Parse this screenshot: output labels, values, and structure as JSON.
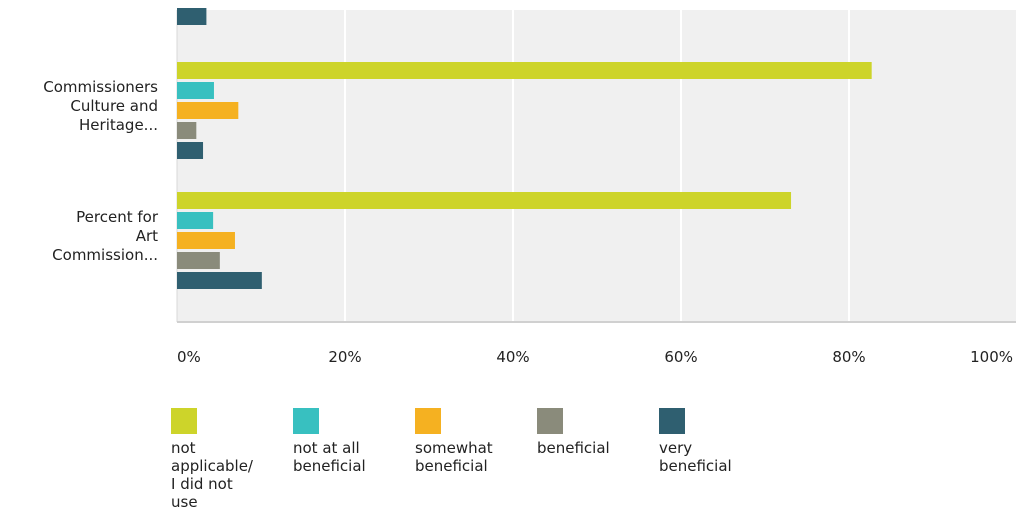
{
  "chart_data": {
    "type": "bar",
    "orientation": "horizontal",
    "grid": true,
    "xlim": [
      0,
      100
    ],
    "ticks": [
      "0%",
      "20%",
      "40%",
      "60%",
      "80%",
      "100%"
    ],
    "categories": [
      "",
      "Commissioners\nCulture and\nHeritage...",
      "Percent for\nArt\nCommission..."
    ],
    "series": [
      {
        "name": "not\napplicable/\nI did not\nuse",
        "color": "#cdd42a",
        "values": [
          null,
          82.7,
          73.1
        ]
      },
      {
        "name": "not at all\nbeneficial",
        "color": "#38c0c0",
        "values": [
          null,
          4.4,
          4.3
        ]
      },
      {
        "name": "somewhat\nbeneficial",
        "color": "#f5b121",
        "values": [
          null,
          7.3,
          6.9
        ]
      },
      {
        "name": "beneficial",
        "color": "#8a8b7b",
        "values": [
          null,
          2.3,
          5.1
        ]
      },
      {
        "name": "very\nbeneficial",
        "color": "#2f5f70",
        "values": [
          3.5,
          3.1,
          10.1
        ]
      }
    ],
    "legend_position": "bottom"
  }
}
